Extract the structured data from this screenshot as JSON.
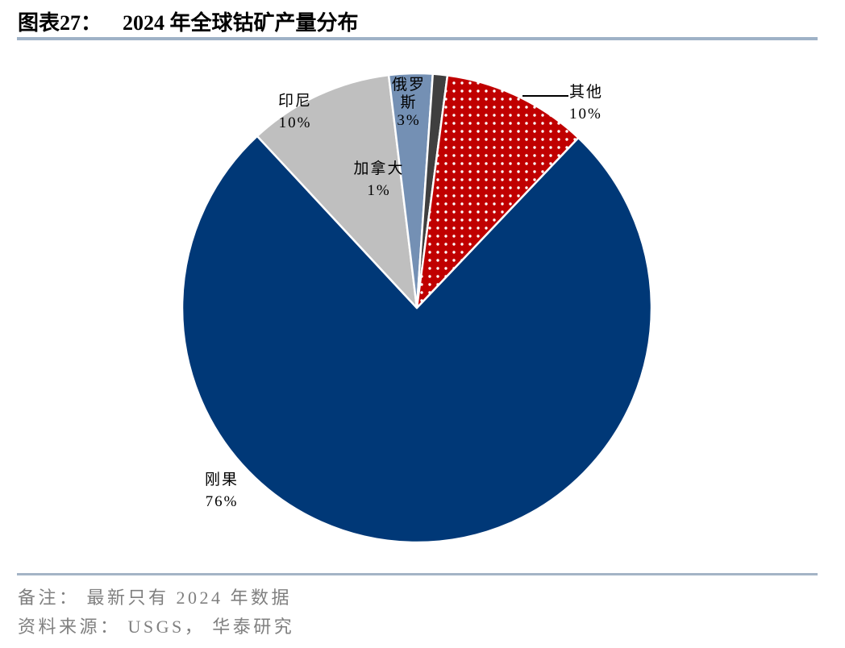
{
  "header": {
    "figure_label": "图表27：",
    "title": "2024 年全球钴矿产量分布"
  },
  "chart_data": {
    "type": "pie",
    "title": "2024 年全球钴矿产量分布",
    "unit": "percent",
    "direction": "clockwise",
    "start_angle_deg": 43.5,
    "slices": [
      {
        "name": "刚果",
        "value": 76,
        "color": "#003877",
        "pattern": null
      },
      {
        "name": "印尼",
        "value": 10,
        "color": "#BFBFBF",
        "pattern": null
      },
      {
        "name": "俄罗斯",
        "value": 3,
        "color": "#7490B4",
        "pattern": null
      },
      {
        "name": "加拿大",
        "value": 1,
        "color": "#3F3F3F",
        "pattern": null
      },
      {
        "name": "其他",
        "value": 10,
        "color": "#C00000",
        "pattern": "white-dots"
      }
    ]
  },
  "labels": {
    "congo": {
      "lines": [
        "刚果",
        "76%"
      ]
    },
    "indonesia": {
      "lines": [
        "印尼",
        "10%"
      ]
    },
    "russia": {
      "lines": [
        "俄罗",
        "斯",
        "3%"
      ]
    },
    "canada": {
      "lines": [
        "加拿大",
        "1%"
      ]
    },
    "others": {
      "lines": [
        "其他",
        "10%"
      ]
    }
  },
  "footer": {
    "note": "备注： 最新只有 2024 年数据",
    "source": "资料来源： USGS， 华泰研究"
  },
  "colors": {
    "congo_navy": "#003877",
    "indonesia_gray": "#BFBFBF",
    "russia_steel_blue": "#7490B4",
    "canada_charcoal": "#3F3F3F",
    "others_red": "#C00000",
    "pattern_dot": "#FFFFFF",
    "title_rule": "#9FB2C7",
    "footer_rule": "#A4B4C6",
    "footer_text": "#808080"
  }
}
